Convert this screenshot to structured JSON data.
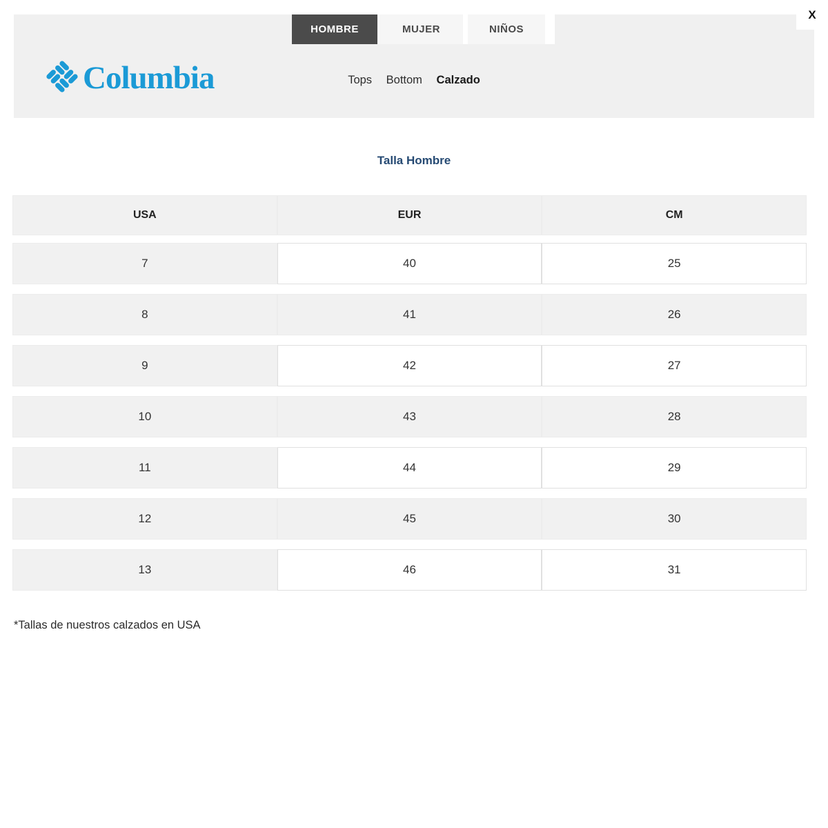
{
  "close_button": {
    "label": "X"
  },
  "brand": {
    "name": "Columbia",
    "logo_color": "#1b9ad6"
  },
  "gender_tabs": {
    "items": [
      {
        "label": "HOMBRE",
        "selected": true
      },
      {
        "label": "MUJER",
        "selected": false
      },
      {
        "label": "NIÑOS",
        "selected": false
      }
    ]
  },
  "category_tabs": {
    "items": [
      {
        "label": "Tops",
        "selected": false
      },
      {
        "label": "Bottom",
        "selected": false
      },
      {
        "label": "Calzado",
        "selected": true
      }
    ]
  },
  "section_title": "Talla Hombre",
  "size_table": {
    "columns": [
      "USA",
      "EUR",
      "CM"
    ],
    "rows": [
      [
        "7",
        "40",
        "25"
      ],
      [
        "8",
        "41",
        "26"
      ],
      [
        "9",
        "42",
        "27"
      ],
      [
        "10",
        "43",
        "28"
      ],
      [
        "11",
        "44",
        "29"
      ],
      [
        "12",
        "45",
        "30"
      ],
      [
        "13",
        "46",
        "31"
      ]
    ]
  },
  "footnote": "*Tallas de nuestros calzados en USA",
  "colors": {
    "header_bg": "#f0f0f0",
    "selected_tab_bg": "#4b4b4b",
    "title_color": "#264a73",
    "row_gray": "#f1f1f1",
    "logo_blue": "#1b9ad6"
  }
}
